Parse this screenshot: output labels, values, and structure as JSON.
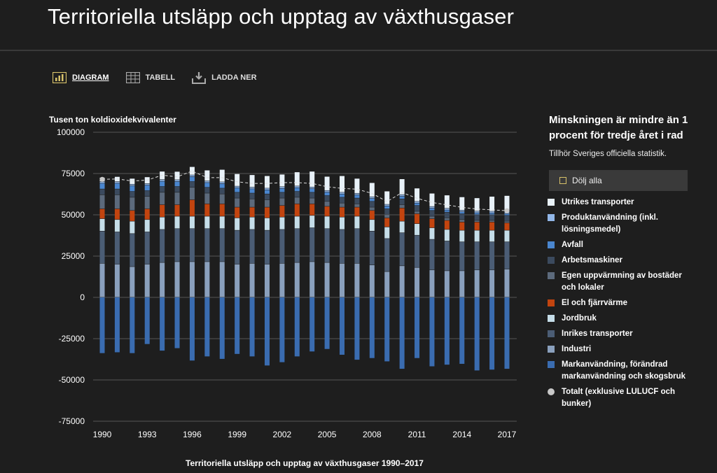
{
  "title": "Territoriella utsläpp och upptag av växthusgaser",
  "tabs": [
    {
      "label": "DIAGRAM",
      "icon": "bar-chart-icon"
    },
    {
      "label": "TABELL",
      "icon": "table-icon"
    },
    {
      "label": "LADDA NER",
      "icon": "download-icon"
    }
  ],
  "legend_panel": {
    "heading": "Minskningen är mindre än 1 procent för tredje året i rad",
    "subtitle": "Tillhör Sveriges officiella statistik.",
    "hide_all": "Dölj alla"
  },
  "chart_data": {
    "type": "bar",
    "stacked": true,
    "ylabel": "Tusen ton koldioxidekvivalenter",
    "xlabel": "Territoriella utsläpp och upptag av växthusgaser 1990–2017",
    "ylim": [
      -75000,
      100000
    ],
    "yticks": [
      "100000",
      "75000",
      "50000",
      "25000",
      "0",
      "-25000",
      "-50000",
      "-75000"
    ],
    "yticks_values": [
      100000,
      75000,
      50000,
      25000,
      0,
      -25000,
      -50000,
      -75000
    ],
    "xticks": [
      "1990",
      "1993",
      "1996",
      "1999",
      "2002",
      "2005",
      "2008",
      "2011",
      "2014",
      "2017"
    ],
    "categories": [
      "1990",
      "1991",
      "1992",
      "1993",
      "1994",
      "1995",
      "1996",
      "1997",
      "1998",
      "1999",
      "2000",
      "2001",
      "2002",
      "2003",
      "2004",
      "2005",
      "2006",
      "2007",
      "2008",
      "2009",
      "2010",
      "2011",
      "2012",
      "2013",
      "2014",
      "2015",
      "2016",
      "2017"
    ],
    "grid": true,
    "series": [
      {
        "name": "Markanvändning, förändrad markanvändning och skogsbruk",
        "color": "#3a6cb0",
        "values": [
          -34000,
          -33500,
          -34000,
          -28500,
          -32500,
          -31000,
          -38500,
          -36000,
          -37500,
          -34500,
          -36000,
          -41500,
          -39500,
          -36000,
          -33000,
          -31500,
          -35000,
          -38000,
          -37000,
          -39000,
          -43500,
          -37000,
          -42000,
          -41000,
          -40500,
          -44500,
          -44000,
          -43500
        ]
      },
      {
        "name": "Industri",
        "color": "#8aa0bd",
        "values": [
          20500,
          20000,
          18500,
          20000,
          21000,
          21500,
          21500,
          21500,
          21500,
          20000,
          20500,
          20000,
          20500,
          21000,
          21500,
          21000,
          20500,
          20500,
          19500,
          15500,
          19000,
          18000,
          16500,
          16000,
          16000,
          16500,
          16500,
          17000
        ]
      },
      {
        "name": "Inrikes transporter",
        "color": "#4b5d75",
        "values": [
          19500,
          19500,
          20000,
          19500,
          20000,
          20000,
          20000,
          20000,
          20000,
          20500,
          20500,
          20500,
          20500,
          20500,
          20500,
          20500,
          20500,
          21000,
          20500,
          20000,
          20000,
          19500,
          18500,
          18000,
          17500,
          17000,
          17000,
          16500
        ]
      },
      {
        "name": "Jordbruk",
        "color": "#c5dde8",
        "values": [
          7500,
          7500,
          7500,
          7500,
          7500,
          7500,
          7500,
          7500,
          7500,
          7500,
          7500,
          7500,
          7500,
          7500,
          7500,
          7500,
          7500,
          7500,
          7000,
          7000,
          7000,
          7000,
          7000,
          7000,
          7000,
          7000,
          7000,
          7000
        ]
      },
      {
        "name": "El och fjärrvärme",
        "color": "#c2440f",
        "values": [
          6000,
          6500,
          6500,
          6500,
          7500,
          7000,
          10000,
          7500,
          7500,
          6500,
          6000,
          6500,
          7000,
          7500,
          7000,
          6000,
          6000,
          5500,
          5500,
          5500,
          8000,
          6000,
          5500,
          5500,
          5000,
          5000,
          5000,
          4500
        ]
      },
      {
        "name": "Egen uppvärmning av bostäder och lokaler",
        "color": "#5c6a7c",
        "values": [
          8500,
          8500,
          8000,
          7500,
          7500,
          7500,
          7500,
          6500,
          6000,
          5500,
          5000,
          4500,
          4500,
          4000,
          3500,
          3000,
          2500,
          2000,
          2000,
          2000,
          2000,
          1500,
          1500,
          1500,
          1500,
          1000,
          1000,
          1000
        ]
      },
      {
        "name": "Arbetsmaskiner",
        "color": "#3b4a5e",
        "values": [
          3500,
          3500,
          3500,
          3500,
          3500,
          3500,
          3500,
          3500,
          3500,
          3500,
          3500,
          3500,
          3500,
          3500,
          3500,
          3500,
          3500,
          3500,
          3500,
          3500,
          3500,
          3500,
          3500,
          3500,
          3500,
          3500,
          3500,
          3500
        ]
      },
      {
        "name": "Avfall",
        "color": "#4a86cf",
        "values": [
          3500,
          3500,
          3400,
          3300,
          3200,
          3100,
          3000,
          2900,
          2800,
          2700,
          2600,
          2500,
          2400,
          2300,
          2200,
          2100,
          2000,
          1900,
          1800,
          1700,
          1600,
          1500,
          1400,
          1300,
          1200,
          1100,
          1000,
          1000
        ]
      },
      {
        "name": "Produktanvändning (inkl. lösningsmedel)",
        "color": "#92b7e8",
        "values": [
          1000,
          1000,
          1000,
          1000,
          1000,
          1000,
          1000,
          1000,
          1000,
          1000,
          1000,
          1000,
          1000,
          1000,
          1000,
          1000,
          1000,
          1000,
          1000,
          1000,
          1000,
          1000,
          1000,
          1000,
          1000,
          1000,
          1000,
          1000
        ]
      },
      {
        "name": "Utrikes transporter",
        "color": "#e8f1f8",
        "values": [
          2500,
          3000,
          3500,
          4000,
          5000,
          5000,
          5000,
          6500,
          7500,
          7500,
          7500,
          7500,
          7500,
          8500,
          9500,
          8500,
          10000,
          9000,
          8500,
          8000,
          9500,
          8000,
          8000,
          8000,
          8000,
          8000,
          9000,
          10000
        ]
      }
    ],
    "totals_series": {
      "name": "Totalt (exklusive LULUCF och bunker)",
      "color": "#c8c8c8",
      "values": [
        71500,
        71700,
        70500,
        71000,
        74000,
        73000,
        76500,
        72500,
        72500,
        70000,
        69000,
        69000,
        69500,
        69500,
        69000,
        67000,
        66000,
        65500,
        63000,
        58000,
        63500,
        60000,
        57500,
        56000,
        54500,
        53500,
        53000,
        52500
      ]
    }
  }
}
